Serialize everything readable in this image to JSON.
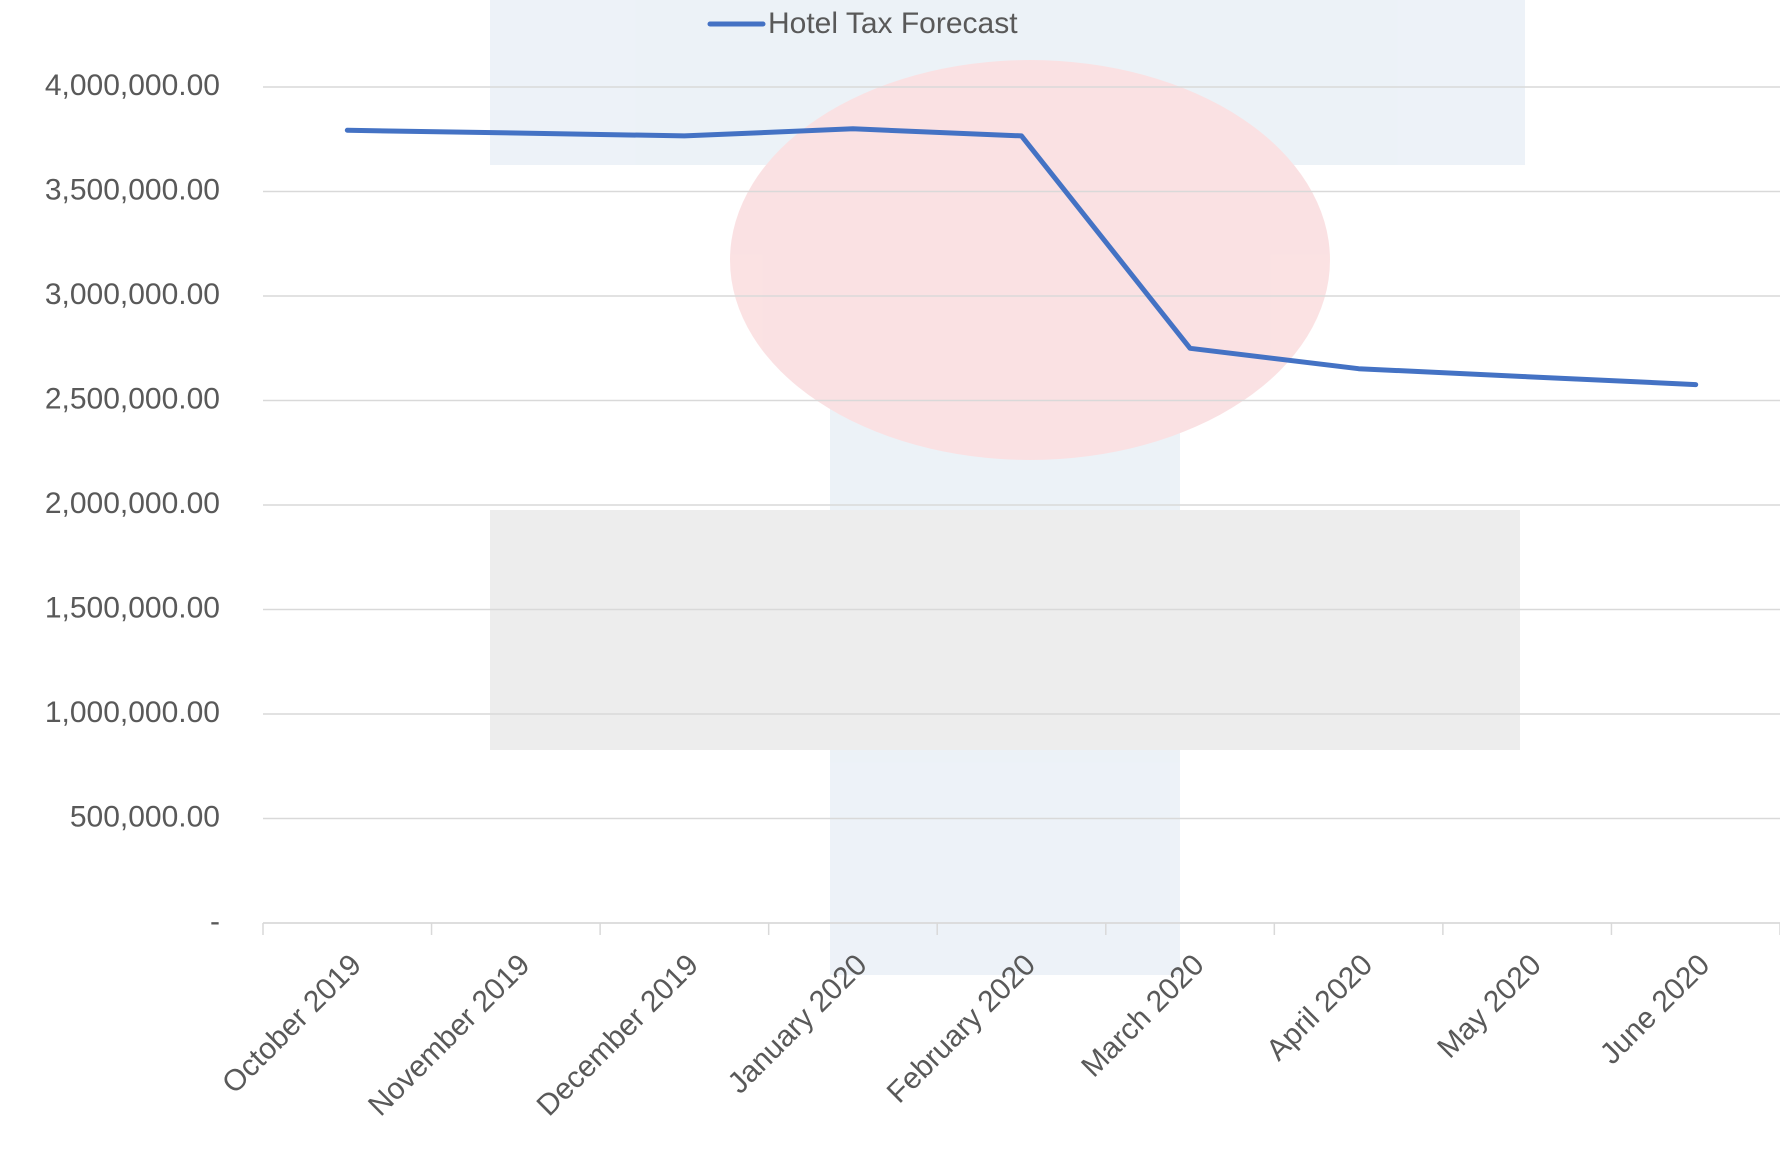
{
  "chart_data": {
    "type": "line",
    "categories": [
      "October 2019",
      "November 2019",
      "December 2019",
      "January 2020",
      "February 2020",
      "March 2020",
      "April 2020",
      "May 2020",
      "June 2020"
    ],
    "series": [
      {
        "name": "Hotel Tax Forecast",
        "color": "#4472c4",
        "values": [
          3793000,
          3780000,
          3766000,
          3800000,
          3766000,
          2750000,
          2652000,
          2614000,
          2576000
        ]
      }
    ],
    "ylim": [
      0,
      4000000
    ],
    "yticks": [
      {
        "value": 0,
        "label": "-"
      },
      {
        "value": 500000,
        "label": "500,000.00"
      },
      {
        "value": 1000000,
        "label": "1,000,000.00"
      },
      {
        "value": 1500000,
        "label": "1,500,000.00"
      },
      {
        "value": 2000000,
        "label": "2,000,000.00"
      },
      {
        "value": 2500000,
        "label": "2,500,000.00"
      },
      {
        "value": 3000000,
        "label": "3,000,000.00"
      },
      {
        "value": 3500000,
        "label": "3,500,000.00"
      },
      {
        "value": 4000000,
        "label": "4,000,000.00"
      }
    ],
    "grid": true,
    "legend": "top"
  }
}
